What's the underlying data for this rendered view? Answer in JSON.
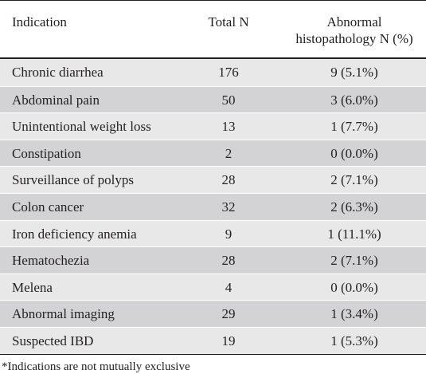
{
  "table": {
    "headers": {
      "indication": "Indication",
      "total": "Total N",
      "abnormal_line1": "Abnormal",
      "abnormal_line2": "histopathology N (%)"
    },
    "rows": [
      {
        "indication": "Chronic diarrhea",
        "total": "176",
        "abnormal": "9 (5.1%)"
      },
      {
        "indication": "Abdominal pain",
        "total": "50",
        "abnormal": "3 (6.0%)"
      },
      {
        "indication": "Unintentional weight loss",
        "total": "13",
        "abnormal": "1 (7.7%)"
      },
      {
        "indication": "Constipation",
        "total": "2",
        "abnormal": "0 (0.0%)"
      },
      {
        "indication": "Surveillance of polyps",
        "total": "28",
        "abnormal": "2 (7.1%)"
      },
      {
        "indication": "Colon cancer",
        "total": "32",
        "abnormal": "2 (6.3%)"
      },
      {
        "indication": "Iron deficiency anemia",
        "total": "9",
        "abnormal": "1 (11.1%)"
      },
      {
        "indication": "Hematochezia",
        "total": "28",
        "abnormal": "2 (7.1%)"
      },
      {
        "indication": "Melena",
        "total": "4",
        "abnormal": "0 (0.0%)"
      },
      {
        "indication": "Abnormal imaging",
        "total": "29",
        "abnormal": "1 (3.4%)"
      },
      {
        "indication": "Suspected IBD",
        "total": "19",
        "abnormal": "1 (5.3%)"
      }
    ],
    "footnote": "*Indications are not mutually exclusive"
  }
}
